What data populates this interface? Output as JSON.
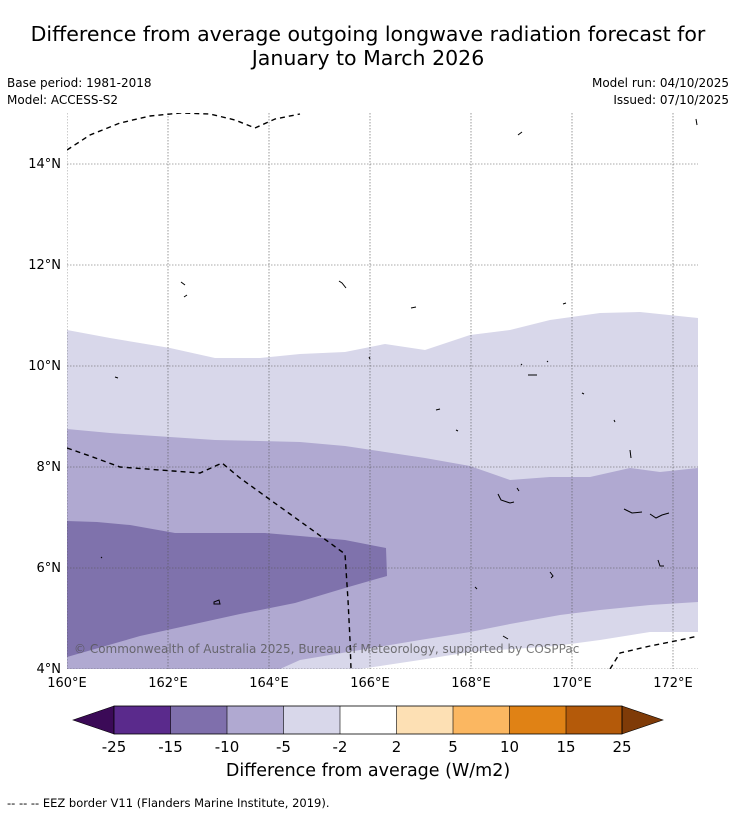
{
  "title": {
    "line1": "Difference from average outgoing longwave radiation forecast for",
    "line2": "January to March 2026"
  },
  "meta": {
    "base_period": "Base period: 1981-2018",
    "model": "Model: ACCESS-S2",
    "model_run": "Model run: 04/10/2025",
    "issued": "Issued: 07/10/2025"
  },
  "axes": {
    "lon_ticks": [
      "160°E",
      "162°E",
      "164°E",
      "166°E",
      "168°E",
      "170°E",
      "172°E"
    ],
    "lat_ticks": [
      "4°N",
      "6°N",
      "8°N",
      "10°N",
      "12°N",
      "14°N"
    ]
  },
  "copyright": "© Commonwealth of Australia 2025, Bureau of Meteorology, supported by COSPPac",
  "colorbar": {
    "title": "Difference from average (W/m2)",
    "ticks": [
      "-25",
      "-15",
      "-10",
      "-5",
      "-2",
      "2",
      "5",
      "10",
      "15",
      "25"
    ],
    "colors": [
      "#3b0a57",
      "#5a2a8c",
      "#7f6fac",
      "#b0a9d1",
      "#d8d7ea",
      "#ffffff",
      "#fde0b4",
      "#fbb761",
      "#e08215",
      "#b45a0a",
      "#7f3b08"
    ]
  },
  "field": {
    "levels": [
      {
        "name": "-5 to -2 W/m2",
        "color": "#d8d7ea"
      },
      {
        "name": "-10 to -5 W/m2",
        "color": "#b0a9d1"
      },
      {
        "name": "-15 to -10 W/m2",
        "color": "#7f72ac"
      }
    ]
  },
  "legend_note": "--  --  -- EEZ border V11 (Flanders Marine Institute, 2019)."
}
